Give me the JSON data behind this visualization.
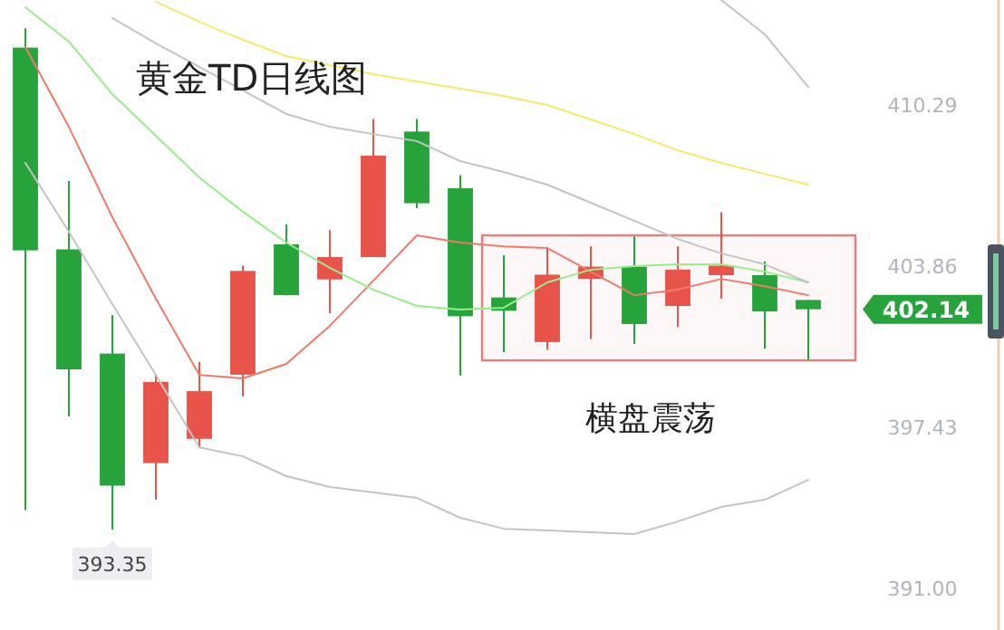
{
  "chart_data": {
    "type": "candlestick",
    "title": "黄金TD日线图",
    "categories": [
      null,
      null,
      null,
      null,
      null,
      null,
      null,
      null,
      null,
      null,
      null,
      null,
      null,
      null,
      null,
      null,
      null,
      null,
      null
    ],
    "ohlc": [
      [
        412.58,
        413.35,
        394.13,
        404.49
      ],
      [
        404.53,
        407.26,
        397.86,
        399.74
      ],
      [
        400.37,
        401.91,
        393.35,
        395.1
      ],
      [
        396.0,
        399.55,
        394.54,
        399.24
      ],
      [
        396.97,
        400.03,
        396.61,
        398.87
      ],
      [
        399.53,
        403.88,
        398.66,
        403.67
      ],
      [
        404.73,
        405.52,
        402.7,
        402.7
      ],
      [
        403.33,
        405.3,
        401.98,
        404.22
      ],
      [
        404.22,
        409.73,
        404.22,
        408.27
      ],
      [
        409.23,
        409.73,
        406.17,
        406.37
      ],
      [
        406.97,
        407.49,
        399.5,
        401.86
      ],
      [
        402.61,
        404.29,
        400.43,
        402.08
      ],
      [
        400.83,
        404.6,
        400.52,
        403.52
      ],
      [
        403.35,
        404.65,
        400.95,
        403.84
      ],
      [
        403.84,
        405.04,
        400.75,
        401.55
      ],
      [
        402.27,
        404.65,
        401.43,
        403.72
      ],
      [
        403.5,
        406.01,
        402.56,
        403.88
      ],
      [
        403.5,
        404.05,
        400.56,
        402.05
      ],
      [
        402.51,
        402.51,
        400.13,
        402.14
      ]
    ],
    "series": [
      {
        "type": "line",
        "color": "#f07a6a",
        "values": [
          412.6,
          409.42,
          405.81,
          402.56,
          399.52,
          399.38,
          399.96,
          401.48,
          403.28,
          405.09,
          404.8,
          404.65,
          404.58,
          403.64,
          402.7,
          402.92,
          403.35,
          403.06,
          402.7
        ]
      },
      {
        "type": "line",
        "color": "#98ec8c",
        "values": [
          414.19,
          412.82,
          410.72,
          409.06,
          407.4,
          406.03,
          404.8,
          403.79,
          402.92,
          402.27,
          402.13,
          402.2,
          403.21,
          403.72,
          403.86,
          403.93,
          403.93,
          403.64,
          403.21
        ]
      },
      {
        "type": "line",
        "color": "#f6e96a",
        "values": [
          null,
          null,
          null,
          414.41,
          413.61,
          412.89,
          412.24,
          411.88,
          411.52,
          411.23,
          410.94,
          410.65,
          410.29,
          409.71,
          409.13,
          408.48,
          407.98,
          407.54,
          407.11
        ]
      },
      {
        "type": "line",
        "color": "#c4c4c4",
        "values": [
          null,
          null,
          413.76,
          412.75,
          411.81,
          410.87,
          409.93,
          409.42,
          409.13,
          408.85,
          408.05,
          407.62,
          407.11,
          406.39,
          405.67,
          404.94,
          404.37,
          403.93,
          403.21
        ]
      },
      {
        "type": "line",
        "color": "#c4c4c4",
        "values": [
          null,
          null,
          null,
          null,
          null,
          null,
          null,
          null,
          null,
          null,
          null,
          null,
          null,
          null,
          null,
          null,
          414.48,
          413.11,
          411.01
        ]
      },
      {
        "type": "line",
        "color": "#c4c4c4",
        "values": [
          407.98,
          405.23,
          402.34,
          399.52,
          396.63,
          396.27,
          395.48,
          395.05,
          394.83,
          394.61,
          393.82,
          393.38,
          393.31,
          393.24,
          393.17,
          393.67,
          394.25,
          394.54,
          395.33
        ]
      }
    ],
    "ylim": [
      389.34,
      414.48
    ],
    "yticks": [
      {
        "value": 391,
        "label": "391.00"
      },
      397.43,
      403.86,
      410.29
    ],
    "tick_labels": "y",
    "bands": [
      {
        "axis": "y",
        "from": 400.1,
        "to": 405.09,
        "label": "横盘震荡",
        "color": "#f07a7a"
      }
    ],
    "annotations": [
      {
        "text": "393.35",
        "y": 393.35
      },
      "402.14"
    ]
  }
}
